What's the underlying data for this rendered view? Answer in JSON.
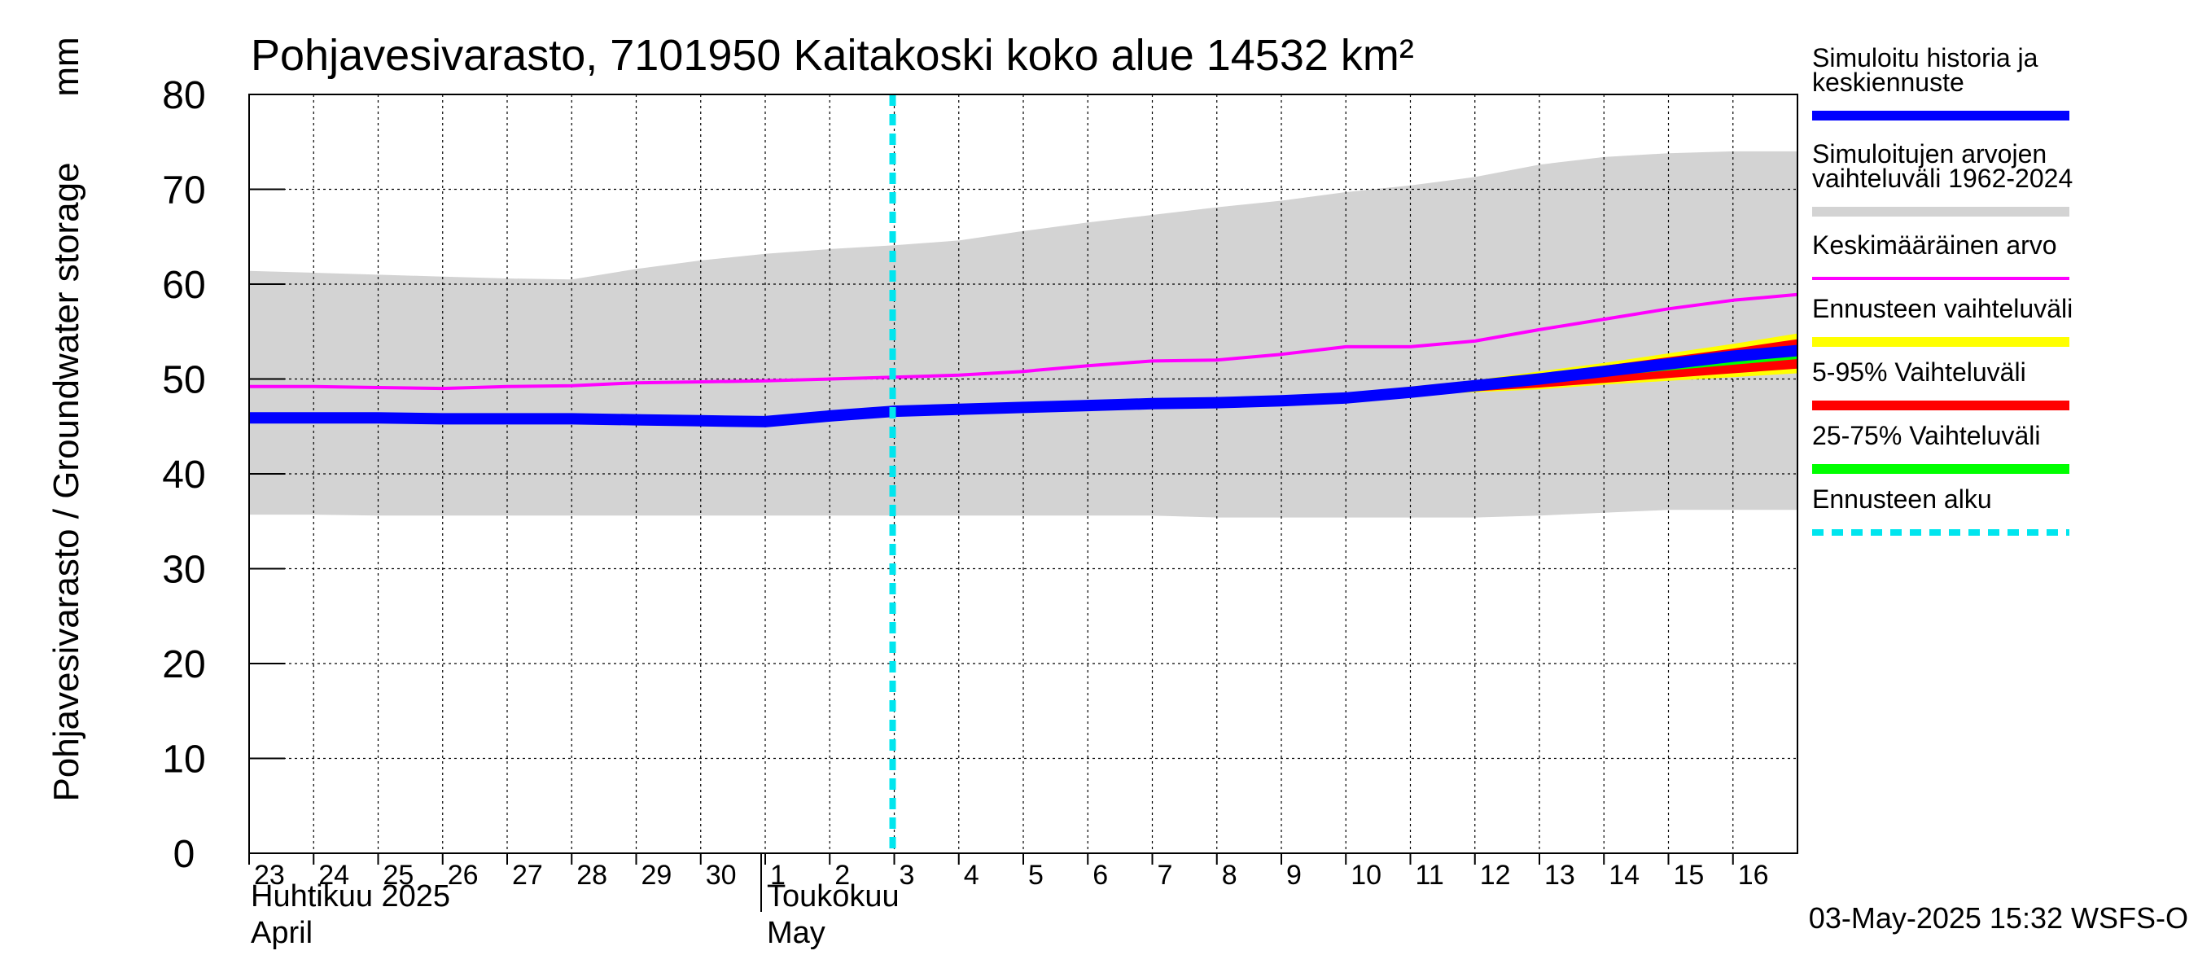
{
  "chart_data": {
    "type": "area",
    "title": "Pohjavesivarasto, 7101950 Kaitakoski koko alue 14532 km²",
    "ylabel": "Pohjavesivarasto / Groundwater storage",
    "yunit": "mm",
    "ylim": [
      0,
      80
    ],
    "yticks": [
      0,
      10,
      20,
      30,
      40,
      50,
      60,
      70,
      80
    ],
    "grid": true,
    "xlim": [
      "2025-04-23",
      "2025-05-17"
    ],
    "xtick_labels": [
      {
        "date": "2025-04-23",
        "label": "23"
      },
      {
        "date": "2025-04-24",
        "label": "24"
      },
      {
        "date": "2025-04-25",
        "label": "25"
      },
      {
        "date": "2025-04-26",
        "label": "26"
      },
      {
        "date": "2025-04-27",
        "label": "27"
      },
      {
        "date": "2025-04-28",
        "label": "28"
      },
      {
        "date": "2025-04-29",
        "label": "29"
      },
      {
        "date": "2025-04-30",
        "label": "30"
      },
      {
        "date": "2025-05-01",
        "label": "1"
      },
      {
        "date": "2025-05-02",
        "label": "2"
      },
      {
        "date": "2025-05-03",
        "label": "3"
      },
      {
        "date": "2025-05-04",
        "label": "4"
      },
      {
        "date": "2025-05-05",
        "label": "5"
      },
      {
        "date": "2025-05-06",
        "label": "6"
      },
      {
        "date": "2025-05-07",
        "label": "7"
      },
      {
        "date": "2025-05-08",
        "label": "8"
      },
      {
        "date": "2025-05-09",
        "label": "9"
      },
      {
        "date": "2025-05-10",
        "label": "10"
      },
      {
        "date": "2025-05-11",
        "label": "11"
      },
      {
        "date": "2025-05-12",
        "label": "12"
      },
      {
        "date": "2025-05-13",
        "label": "13"
      },
      {
        "date": "2025-05-14",
        "label": "14"
      },
      {
        "date": "2025-05-15",
        "label": "15"
      },
      {
        "date": "2025-05-16",
        "label": "16"
      }
    ],
    "month_labels": [
      {
        "date": "2025-04-23",
        "line1": "Huhtikuu  2025",
        "line2": "April"
      },
      {
        "date": "2025-05-01",
        "line1": "Toukokuu",
        "line2": "May"
      }
    ],
    "month_separator": "2025-05-01",
    "x": [
      "2025-04-23",
      "2025-04-24",
      "2025-04-25",
      "2025-04-26",
      "2025-04-27",
      "2025-04-28",
      "2025-04-29",
      "2025-04-30",
      "2025-05-01",
      "2025-05-02",
      "2025-05-03",
      "2025-05-04",
      "2025-05-05",
      "2025-05-06",
      "2025-05-07",
      "2025-05-08",
      "2025-05-09",
      "2025-05-10",
      "2025-05-11",
      "2025-05-12",
      "2025-05-13",
      "2025-05-14",
      "2025-05-15",
      "2025-05-16",
      "2025-05-17"
    ],
    "range_band": {
      "name": "Simuloitujen arvojen vaihteluväli 1962-2024",
      "color": "#d3d3d3",
      "upper": [
        61.4,
        61.2,
        61.0,
        60.8,
        60.6,
        60.5,
        61.6,
        62.5,
        63.2,
        63.7,
        64.1,
        64.6,
        65.6,
        66.5,
        67.3,
        68.1,
        68.8,
        69.7,
        70.4,
        71.3,
        72.6,
        73.4,
        73.8,
        74.0,
        74.0
      ],
      "lower": [
        35.7,
        35.7,
        35.6,
        35.6,
        35.6,
        35.6,
        35.6,
        35.6,
        35.6,
        35.6,
        35.6,
        35.6,
        35.6,
        35.6,
        35.6,
        35.4,
        35.4,
        35.4,
        35.4,
        35.4,
        35.6,
        35.9,
        36.2,
        36.2,
        36.2
      ]
    },
    "series": [
      {
        "name": "Keskimääräinen arvo",
        "color": "#ff00ff",
        "values": [
          49.2,
          49.2,
          49.1,
          49.0,
          49.2,
          49.3,
          49.6,
          49.7,
          49.8,
          50.0,
          50.2,
          50.4,
          50.8,
          51.4,
          51.9,
          52.0,
          52.6,
          53.4,
          53.4,
          54.0,
          55.2,
          56.3,
          57.4,
          58.3,
          58.9
        ]
      },
      {
        "name": "Simuloitu historia ja keskiennuste",
        "color": "#0000ff",
        "values": [
          45.9,
          45.9,
          45.9,
          45.8,
          45.8,
          45.8,
          45.7,
          45.6,
          45.5,
          46.1,
          46.6,
          46.8,
          47.0,
          47.2,
          47.4,
          47.5,
          47.7,
          48.0,
          48.6,
          49.3,
          50.0,
          50.8,
          51.6,
          52.4,
          53.0
        ]
      }
    ],
    "forecast_bands": [
      {
        "name": "Ennusteen vaihteluväli",
        "color": "#ffff00",
        "x_start": "2025-05-09",
        "upper": [
          47.9,
          48.4,
          49.2,
          49.9,
          50.8,
          51.7,
          52.7,
          53.7,
          54.8
        ],
        "lower": [
          47.6,
          47.9,
          48.3,
          48.6,
          48.9,
          49.4,
          49.8,
          50.2,
          50.6
        ]
      },
      {
        "name": "5-95% Vaihteluväli",
        "color": "#ff0000",
        "x_start": "2025-05-09",
        "upper": [
          47.8,
          48.3,
          49.0,
          49.7,
          50.5,
          51.4,
          52.3,
          53.2,
          54.2
        ],
        "lower": [
          47.7,
          48.0,
          48.4,
          48.7,
          49.1,
          49.6,
          50.1,
          50.6,
          51.1
        ]
      },
      {
        "name": "25-75% Vaihteluväli",
        "color": "#00ff00",
        "x_start": "2025-05-09",
        "upper": [
          47.8,
          48.2,
          48.9,
          49.5,
          50.3,
          51.0,
          51.8,
          52.6,
          53.4
        ],
        "lower": [
          47.7,
          48.1,
          48.6,
          49.1,
          49.7,
          50.3,
          50.9,
          51.5,
          52.1
        ]
      }
    ],
    "forecast_start": {
      "name": "Ennusteen alku",
      "color": "#00e5ee",
      "date": "2025-05-03"
    },
    "legend_position": "right",
    "legend": [
      {
        "lines": [
          "Simuloitu historia ja",
          "keskiennuste"
        ],
        "color": "#0000ff",
        "style": "solid"
      },
      {
        "lines": [
          "Simuloitujen arvojen",
          "vaihteluväli 1962-2024"
        ],
        "color": "#d3d3d3",
        "style": "solid"
      },
      {
        "lines": [
          "Keskimääräinen arvo"
        ],
        "color": "#ff00ff",
        "style": "thin"
      },
      {
        "lines": [
          "Ennusteen vaihteluväli"
        ],
        "color": "#ffff00",
        "style": "solid"
      },
      {
        "lines": [
          "5-95% Vaihteluväli"
        ],
        "color": "#ff0000",
        "style": "solid"
      },
      {
        "lines": [
          "25-75% Vaihteluväli"
        ],
        "color": "#00ff00",
        "style": "solid"
      },
      {
        "lines": [
          "Ennusteen alku"
        ],
        "color": "#00e5ee",
        "style": "dashed"
      }
    ],
    "footer": "03-May-2025 15:32 WSFS-O"
  }
}
